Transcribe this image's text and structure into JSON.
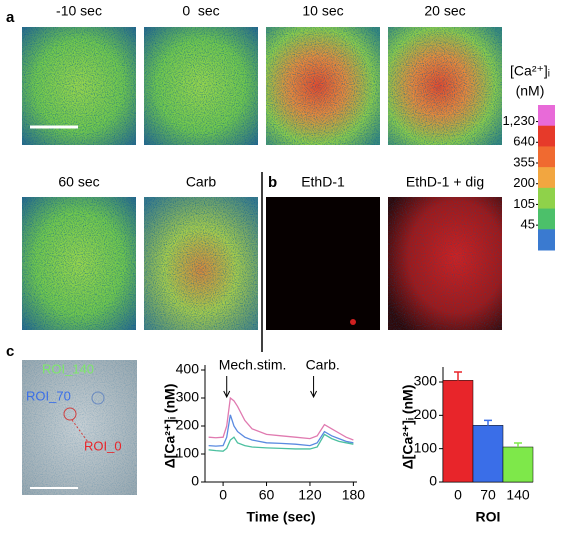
{
  "panel_letters": [
    "a",
    "b",
    "c"
  ],
  "panel_a": {
    "frames": [
      "-10 sec",
      "0  sec",
      "10 sec",
      "20 sec",
      "60 sec",
      "Carb"
    ],
    "colorbar": {
      "title": "[Ca²⁺]ᵢ",
      "unit": "(nM)",
      "labels": [
        {
          "value": 1230,
          "label": "1,230"
        },
        640,
        355,
        200,
        105,
        45
      ],
      "colors": [
        "#e86ad8",
        "#e63a2a",
        "#f06a30",
        "#f2a640",
        "#8fd24a",
        "#4cc06a",
        "#3a7ad0"
      ]
    }
  },
  "panel_b": {
    "frames": [
      "EthD-1",
      "EthD-1 + dig"
    ]
  },
  "panel_c": {
    "roi_labels": [
      "ROI_140",
      "ROI_70",
      "ROI_0"
    ]
  },
  "chart_data": [
    {
      "type": "line",
      "x_label": "Time (sec)",
      "y_label": "Δ[Ca²⁺]ᵢ (nM)",
      "x": [
        -20,
        -10,
        0,
        5,
        10,
        15,
        20,
        30,
        40,
        60,
        80,
        100,
        120,
        130,
        140,
        150,
        160,
        170,
        180
      ],
      "series": [
        {
          "color": "#e07ab0",
          "values": [
            160,
            158,
            160,
            200,
            300,
            290,
            270,
            220,
            190,
            170,
            165,
            160,
            155,
            165,
            205,
            190,
            175,
            160,
            150
          ]
        },
        {
          "color": "#5a8ae0",
          "values": [
            130,
            128,
            130,
            160,
            240,
            200,
            180,
            160,
            150,
            140,
            138,
            135,
            130,
            140,
            180,
            165,
            155,
            145,
            140
          ]
        },
        {
          "color": "#4cc0a0",
          "values": [
            115,
            112,
            110,
            120,
            150,
            160,
            140,
            130,
            125,
            122,
            120,
            118,
            118,
            125,
            170,
            155,
            145,
            140,
            135
          ]
        }
      ],
      "xlim": [
        -25,
        185
      ],
      "xticks": [
        0,
        60,
        120,
        180
      ],
      "ylim": [
        0,
        400
      ],
      "yticks": [
        0,
        100,
        200,
        300,
        400
      ],
      "annotations": [
        {
          "text": "Mech.stim.",
          "x": 5
        },
        {
          "text": "Carb.",
          "x": 125
        }
      ]
    },
    {
      "type": "bar",
      "x_label": "ROI",
      "y_label": "Δ[Ca²⁺]ᵢ (nM)",
      "categories": [
        "0",
        "70",
        "140"
      ],
      "values": [
        305,
        170,
        105
      ],
      "errors": [
        25,
        15,
        12
      ],
      "colors": [
        "#e8252a",
        "#3a6ee8",
        "#7ee84a"
      ],
      "ylim": [
        0,
        330
      ],
      "yticks": [
        0,
        100,
        200,
        300
      ]
    }
  ]
}
